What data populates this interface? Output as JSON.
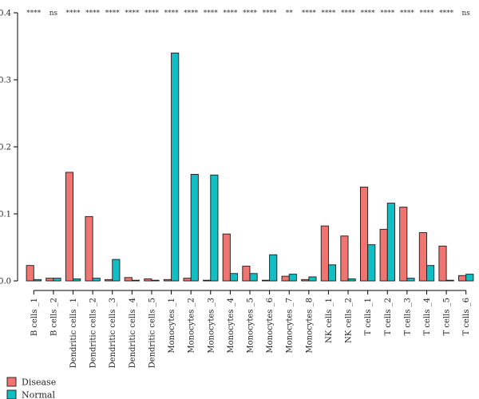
{
  "chart_data": {
    "type": "bar",
    "title": "",
    "xlabel": "",
    "ylabel": "",
    "ylim": [
      0,
      0.4
    ],
    "yticks": [
      "0.0",
      "0.1",
      "0.2",
      "0.3",
      "0.4"
    ],
    "categories": [
      "B cells _1",
      "B cells _2",
      "Dendritic cells _1",
      "Dendritic cells _2",
      "Dendritic cells _3",
      "Dendritic cells _4",
      "Dendritic cells _5",
      "Monocytes _1",
      "Monocytes _2",
      "Monocytes _3",
      "Monocytes _4",
      "Monocytes _5",
      "Monocytes _6",
      "Monocytes _7",
      "Monocytes _8",
      "NK cells _1",
      "NK cells _2",
      "T cells _1",
      "T cells _2",
      "T cells _3",
      "T cells _4",
      "T cells _5",
      "T cells _6"
    ],
    "significance": [
      "****",
      "ns",
      "****",
      "****",
      "****",
      "****",
      "****",
      "****",
      "****",
      "****",
      "****",
      "****",
      "****",
      "**",
      "****",
      "****",
      "****",
      "****",
      "****",
      "****",
      "****",
      "****",
      "ns"
    ],
    "series": [
      {
        "name": "Disease",
        "color": "#F07470",
        "values": [
          0.023,
          0.004,
          0.162,
          0.096,
          0.002,
          0.005,
          0.003,
          0.002,
          0.004,
          0.001,
          0.07,
          0.022,
          0.001,
          0.007,
          0.002,
          0.082,
          0.067,
          0.14,
          0.077,
          0.11,
          0.072,
          0.052,
          0.008
        ]
      },
      {
        "name": "Normal",
        "color": "#10BEC4",
        "values": [
          0.002,
          0.004,
          0.003,
          0.004,
          0.032,
          0.001,
          0.001,
          0.34,
          0.159,
          0.158,
          0.011,
          0.011,
          0.039,
          0.01,
          0.006,
          0.024,
          0.003,
          0.054,
          0.116,
          0.004,
          0.023,
          0.001,
          0.01
        ]
      }
    ],
    "grid": false,
    "legend": {
      "placement": "bottom-left",
      "entries": [
        "Disease",
        "Normal"
      ]
    }
  }
}
